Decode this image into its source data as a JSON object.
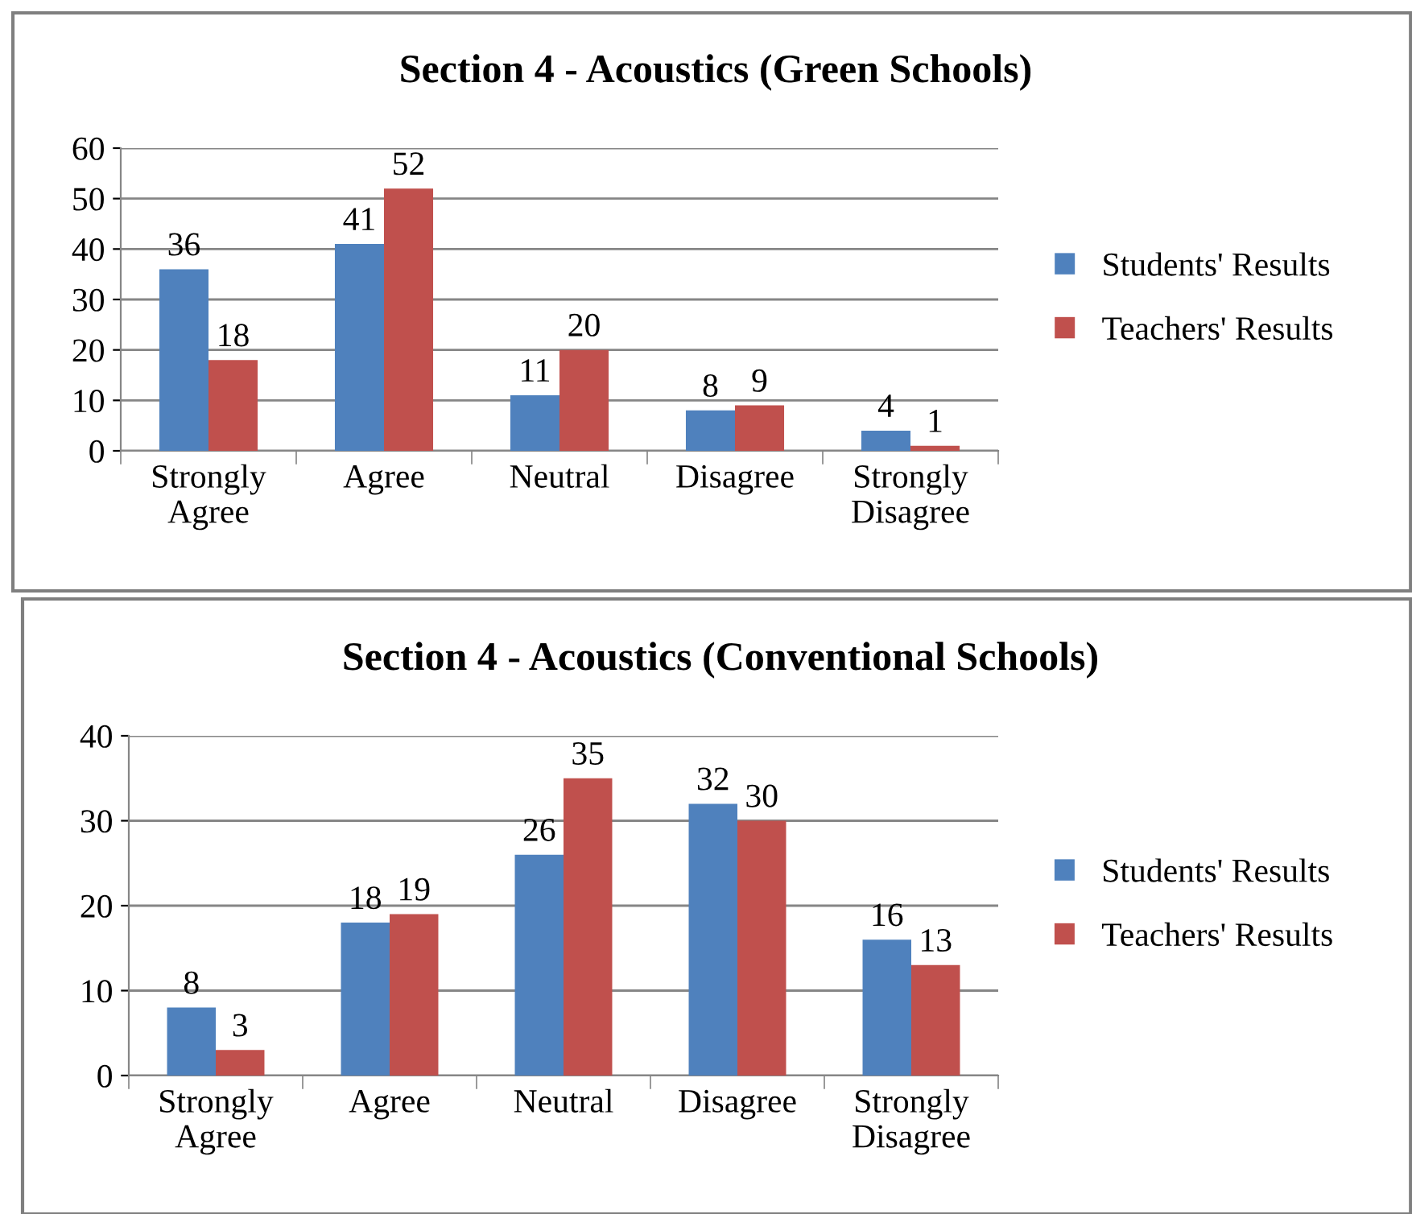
{
  "chart_data": [
    {
      "type": "bar",
      "title": "Section 4 - Acoustics (Green Schools)",
      "categories": [
        "Strongly\nAgree",
        "Agree",
        "Neutral",
        "Disagree",
        "Strongly\nDisagree"
      ],
      "series": [
        {
          "name": "Students' Results",
          "color": "#4f81bd",
          "values": [
            36,
            41,
            11,
            8,
            4
          ]
        },
        {
          "name": "Teachers' Results",
          "color": "#c0504d",
          "values": [
            18,
            52,
            20,
            9,
            1
          ]
        }
      ],
      "ylim": [
        0,
        60
      ],
      "yticks": [
        0,
        10,
        20,
        30,
        40,
        50,
        60
      ],
      "grid": "y",
      "legend": "right",
      "data_labels": true
    },
    {
      "type": "bar",
      "title": "Section 4 - Acoustics (Conventional Schools)",
      "categories": [
        "Strongly\nAgree",
        "Agree",
        "Neutral",
        "Disagree",
        "Strongly\nDisagree"
      ],
      "series": [
        {
          "name": "Students' Results",
          "color": "#4f81bd",
          "values": [
            8,
            18,
            26,
            32,
            16
          ]
        },
        {
          "name": "Teachers' Results",
          "color": "#c0504d",
          "values": [
            3,
            19,
            35,
            30,
            13
          ]
        }
      ],
      "ylim": [
        0,
        40
      ],
      "yticks": [
        0,
        10,
        20,
        30,
        40
      ],
      "grid": "y",
      "legend": "right",
      "data_labels": true
    }
  ]
}
